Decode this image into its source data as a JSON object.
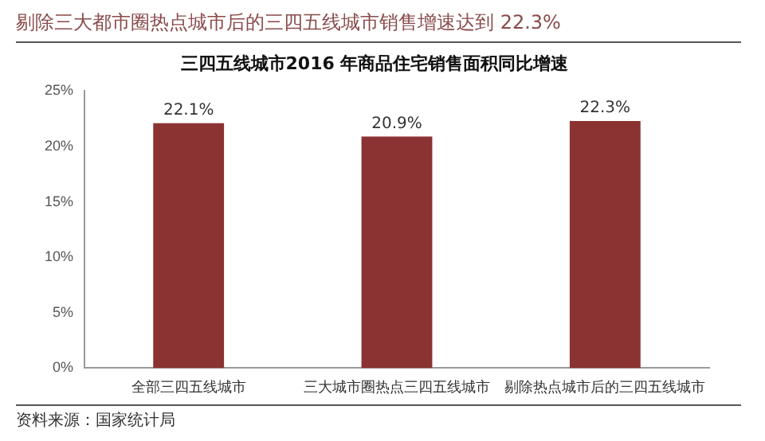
{
  "chart_data": {
    "type": "bar",
    "title": "剔除三大都市圈热点城市后的三四五线城市销售增速达到 22.3%",
    "subtitle": "三四五线城市2016 年商品住宅销售面积同比增速",
    "categories": [
      "全部三四五线城市",
      "三大城市圈热点三四五线城市",
      "剔除热点城市后的三四五线城市"
    ],
    "values": [
      22.1,
      20.9,
      22.3
    ],
    "color": "#8b3232",
    "value_labels": [
      "22.1%",
      "20.9%",
      "22.3%"
    ],
    "ylim": [
      0,
      25
    ],
    "yticks": [
      {
        "value": 0,
        "label": "0%"
      },
      {
        "value": 5,
        "label": "5%"
      },
      {
        "value": 10,
        "label": "10%"
      },
      {
        "value": 15,
        "label": "15%"
      },
      {
        "value": 20,
        "label": "20%"
      },
      {
        "value": 25,
        "label": "25%"
      }
    ],
    "grid": false,
    "legend": false,
    "annotations": [
      "资料来源：国家统计局"
    ]
  }
}
